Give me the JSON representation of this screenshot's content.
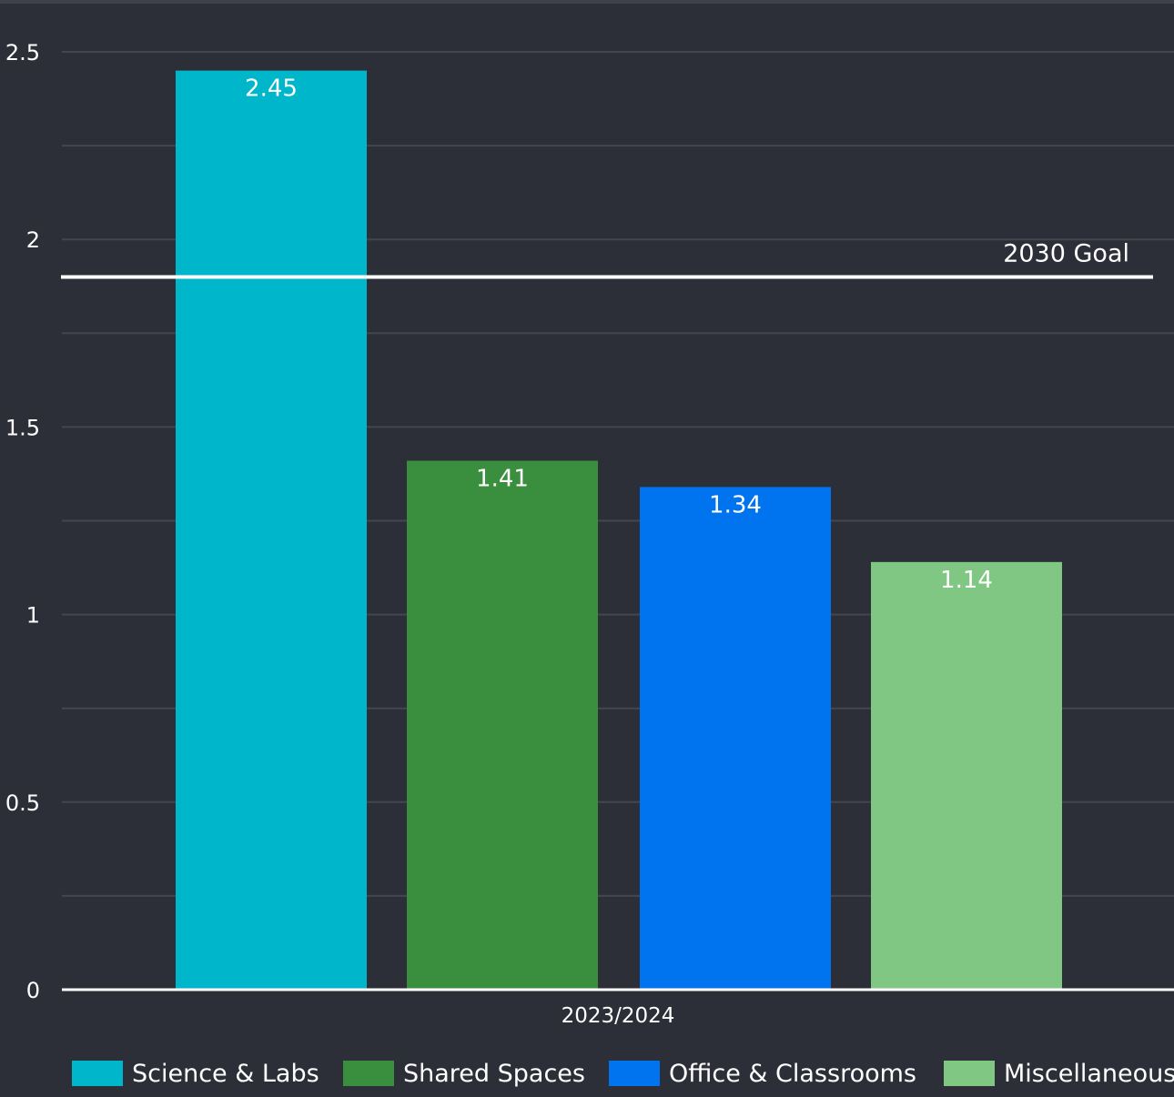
{
  "chart_data": {
    "type": "bar",
    "categories": [
      "2023/2024"
    ],
    "series": [
      {
        "name": "Science & Labs",
        "values": [
          2.45
        ],
        "label": "2.45",
        "color": "#00b6cb"
      },
      {
        "name": "Shared Spaces",
        "values": [
          1.41
        ],
        "label": "1.41",
        "color": "#3a8f3e"
      },
      {
        "name": "Office & Classrooms",
        "values": [
          1.34
        ],
        "label": "1.34",
        "color": "#0073ef"
      },
      {
        "name": "Miscellaneous",
        "values": [
          1.14
        ],
        "label": "1.14",
        "color": "#81c784"
      }
    ],
    "ylim": [
      0,
      2.6
    ],
    "y_ticks": [
      {
        "value": 0,
        "label": "0"
      },
      {
        "value": 0.5,
        "label": "0.5"
      },
      {
        "value": 1,
        "label": "1"
      },
      {
        "value": 1.5,
        "label": "1.5"
      },
      {
        "value": 2,
        "label": "2"
      },
      {
        "value": 2.5,
        "label": "2.5"
      }
    ],
    "minor_gridlines": [
      0.25,
      0.75,
      1.25,
      1.75,
      2.25
    ],
    "reference_line": {
      "value": 1.9,
      "label": "2030 Goal"
    },
    "grid": true,
    "legend_position": "bottom",
    "background_color": "#2d2f38",
    "gridline_color": "#43464f",
    "text_color": "#ffffff"
  }
}
